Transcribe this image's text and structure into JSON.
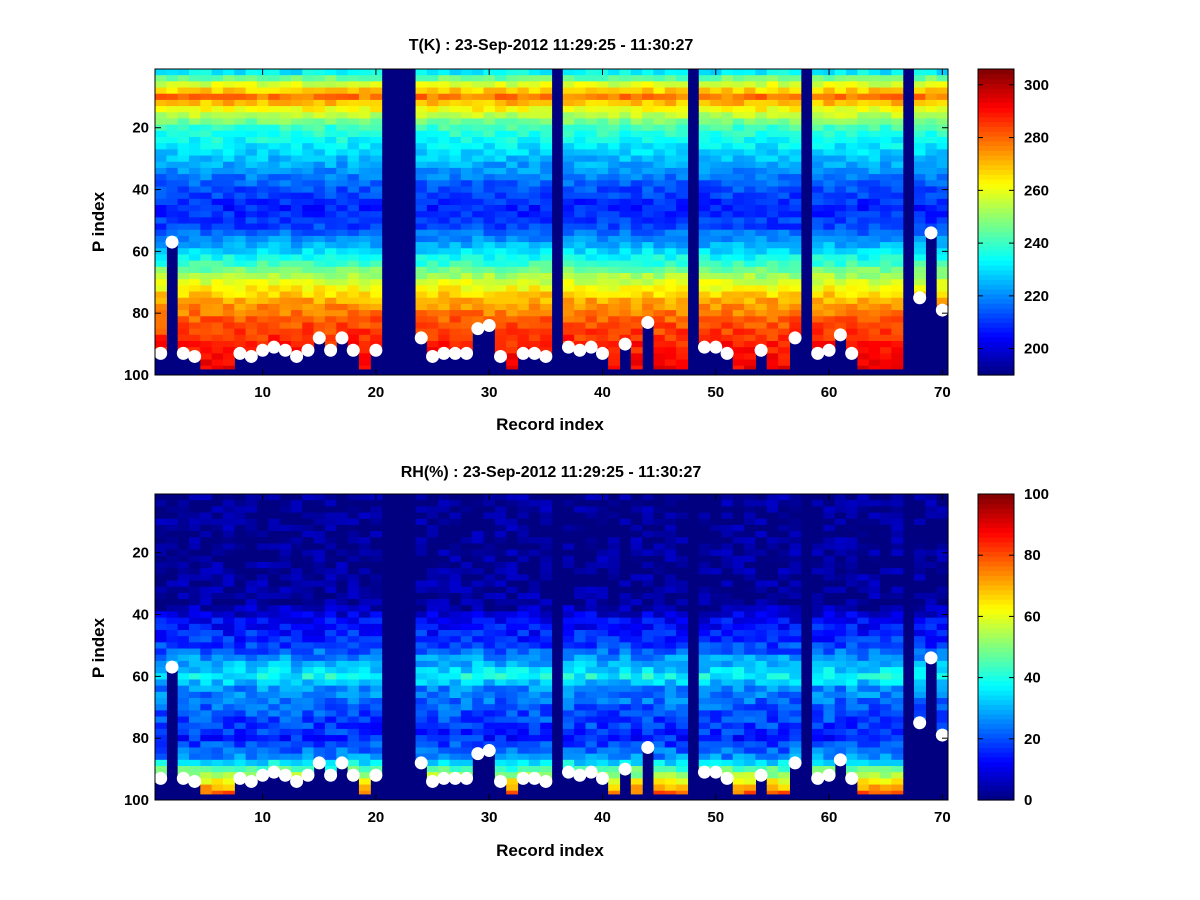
{
  "chart_data": [
    {
      "type": "heatmap",
      "title": "T(K) : 23-Sep-2012 11:29:25 - 11:30:27",
      "xlabel": "Record index",
      "ylabel": "P index",
      "xlim": [
        0.5,
        70.5
      ],
      "ylim": [
        1,
        100
      ],
      "y_reversed": true,
      "x_ticks": [
        "10",
        "20",
        "30",
        "40",
        "50",
        "60",
        "70"
      ],
      "y_ticks": [
        "20",
        "40",
        "60",
        "80",
        "100"
      ],
      "colorbar": {
        "min": 190,
        "max": 306,
        "ticks": [
          "200",
          "220",
          "240",
          "260",
          "280",
          "300"
        ]
      },
      "missing_records": [
        21,
        22,
        23,
        36,
        48,
        58,
        67
      ],
      "profile_values": [
        {
          "p": 1,
          "v": 226
        },
        {
          "p": 6,
          "v": 258
        },
        {
          "p": 10,
          "v": 278
        },
        {
          "p": 14,
          "v": 262
        },
        {
          "p": 20,
          "v": 240
        },
        {
          "p": 30,
          "v": 226
        },
        {
          "p": 40,
          "v": 213
        },
        {
          "p": 46,
          "v": 208
        },
        {
          "p": 52,
          "v": 212
        },
        {
          "p": 58,
          "v": 225
        },
        {
          "p": 64,
          "v": 240
        },
        {
          "p": 70,
          "v": 258
        },
        {
          "p": 76,
          "v": 272
        },
        {
          "p": 82,
          "v": 281
        },
        {
          "p": 90,
          "v": 288
        },
        {
          "p": 98,
          "v": 293
        }
      ],
      "surface_points": [
        [
          1,
          93
        ],
        [
          2,
          57
        ],
        [
          3,
          93
        ],
        [
          4,
          94
        ],
        [
          8,
          93
        ],
        [
          9,
          94
        ],
        [
          10,
          92
        ],
        [
          11,
          91
        ],
        [
          12,
          92
        ],
        [
          13,
          94
        ],
        [
          14,
          92
        ],
        [
          15,
          88
        ],
        [
          16,
          92
        ],
        [
          17,
          88
        ],
        [
          18,
          92
        ],
        [
          20,
          92
        ],
        [
          24,
          88
        ],
        [
          25,
          94
        ],
        [
          26,
          93
        ],
        [
          27,
          93
        ],
        [
          28,
          93
        ],
        [
          29,
          85
        ],
        [
          30,
          84
        ],
        [
          31,
          94
        ],
        [
          33,
          93
        ],
        [
          34,
          93
        ],
        [
          35,
          94
        ],
        [
          37,
          91
        ],
        [
          38,
          92
        ],
        [
          39,
          91
        ],
        [
          40,
          93
        ],
        [
          42,
          90
        ],
        [
          44,
          83
        ],
        [
          49,
          91
        ],
        [
          50,
          91
        ],
        [
          51,
          93
        ],
        [
          54,
          92
        ],
        [
          57,
          88
        ],
        [
          59,
          93
        ],
        [
          60,
          92
        ],
        [
          61,
          87
        ],
        [
          62,
          93
        ],
        [
          68,
          75
        ],
        [
          69,
          54
        ],
        [
          70,
          79
        ]
      ]
    },
    {
      "type": "heatmap",
      "title": "RH(%) : 23-Sep-2012 11:29:25 - 11:30:27",
      "xlabel": "Record index",
      "ylabel": "P index",
      "xlim": [
        0.5,
        70.5
      ],
      "ylim": [
        1,
        100
      ],
      "y_reversed": true,
      "x_ticks": [
        "10",
        "20",
        "30",
        "40",
        "50",
        "60",
        "70"
      ],
      "y_ticks": [
        "20",
        "40",
        "60",
        "80",
        "100"
      ],
      "colorbar": {
        "min": 0,
        "max": 100,
        "ticks": [
          "0",
          "20",
          "40",
          "60",
          "80",
          "100"
        ]
      },
      "missing_records": [
        21,
        22,
        23,
        36,
        48,
        58,
        67
      ],
      "profile_values": [
        {
          "p": 1,
          "v": 1
        },
        {
          "p": 36,
          "v": 2
        },
        {
          "p": 42,
          "v": 12
        },
        {
          "p": 50,
          "v": 18
        },
        {
          "p": 56,
          "v": 30
        },
        {
          "p": 60,
          "v": 38
        },
        {
          "p": 64,
          "v": 26
        },
        {
          "p": 72,
          "v": 20
        },
        {
          "p": 80,
          "v": 16
        },
        {
          "p": 86,
          "v": 26
        },
        {
          "p": 90,
          "v": 45
        },
        {
          "p": 94,
          "v": 62
        },
        {
          "p": 98,
          "v": 78
        }
      ],
      "surface_points": [
        [
          1,
          93
        ],
        [
          2,
          57
        ],
        [
          3,
          93
        ],
        [
          4,
          94
        ],
        [
          8,
          93
        ],
        [
          9,
          94
        ],
        [
          10,
          92
        ],
        [
          11,
          91
        ],
        [
          12,
          92
        ],
        [
          13,
          94
        ],
        [
          14,
          92
        ],
        [
          15,
          88
        ],
        [
          16,
          92
        ],
        [
          17,
          88
        ],
        [
          18,
          92
        ],
        [
          20,
          92
        ],
        [
          24,
          88
        ],
        [
          25,
          94
        ],
        [
          26,
          93
        ],
        [
          27,
          93
        ],
        [
          28,
          93
        ],
        [
          29,
          85
        ],
        [
          30,
          84
        ],
        [
          31,
          94
        ],
        [
          33,
          93
        ],
        [
          34,
          93
        ],
        [
          35,
          94
        ],
        [
          37,
          91
        ],
        [
          38,
          92
        ],
        [
          39,
          91
        ],
        [
          40,
          93
        ],
        [
          42,
          90
        ],
        [
          44,
          83
        ],
        [
          49,
          91
        ],
        [
          50,
          91
        ],
        [
          51,
          93
        ],
        [
          54,
          92
        ],
        [
          57,
          88
        ],
        [
          59,
          93
        ],
        [
          60,
          92
        ],
        [
          61,
          87
        ],
        [
          62,
          93
        ],
        [
          68,
          75
        ],
        [
          69,
          54
        ],
        [
          70,
          79
        ]
      ]
    }
  ]
}
